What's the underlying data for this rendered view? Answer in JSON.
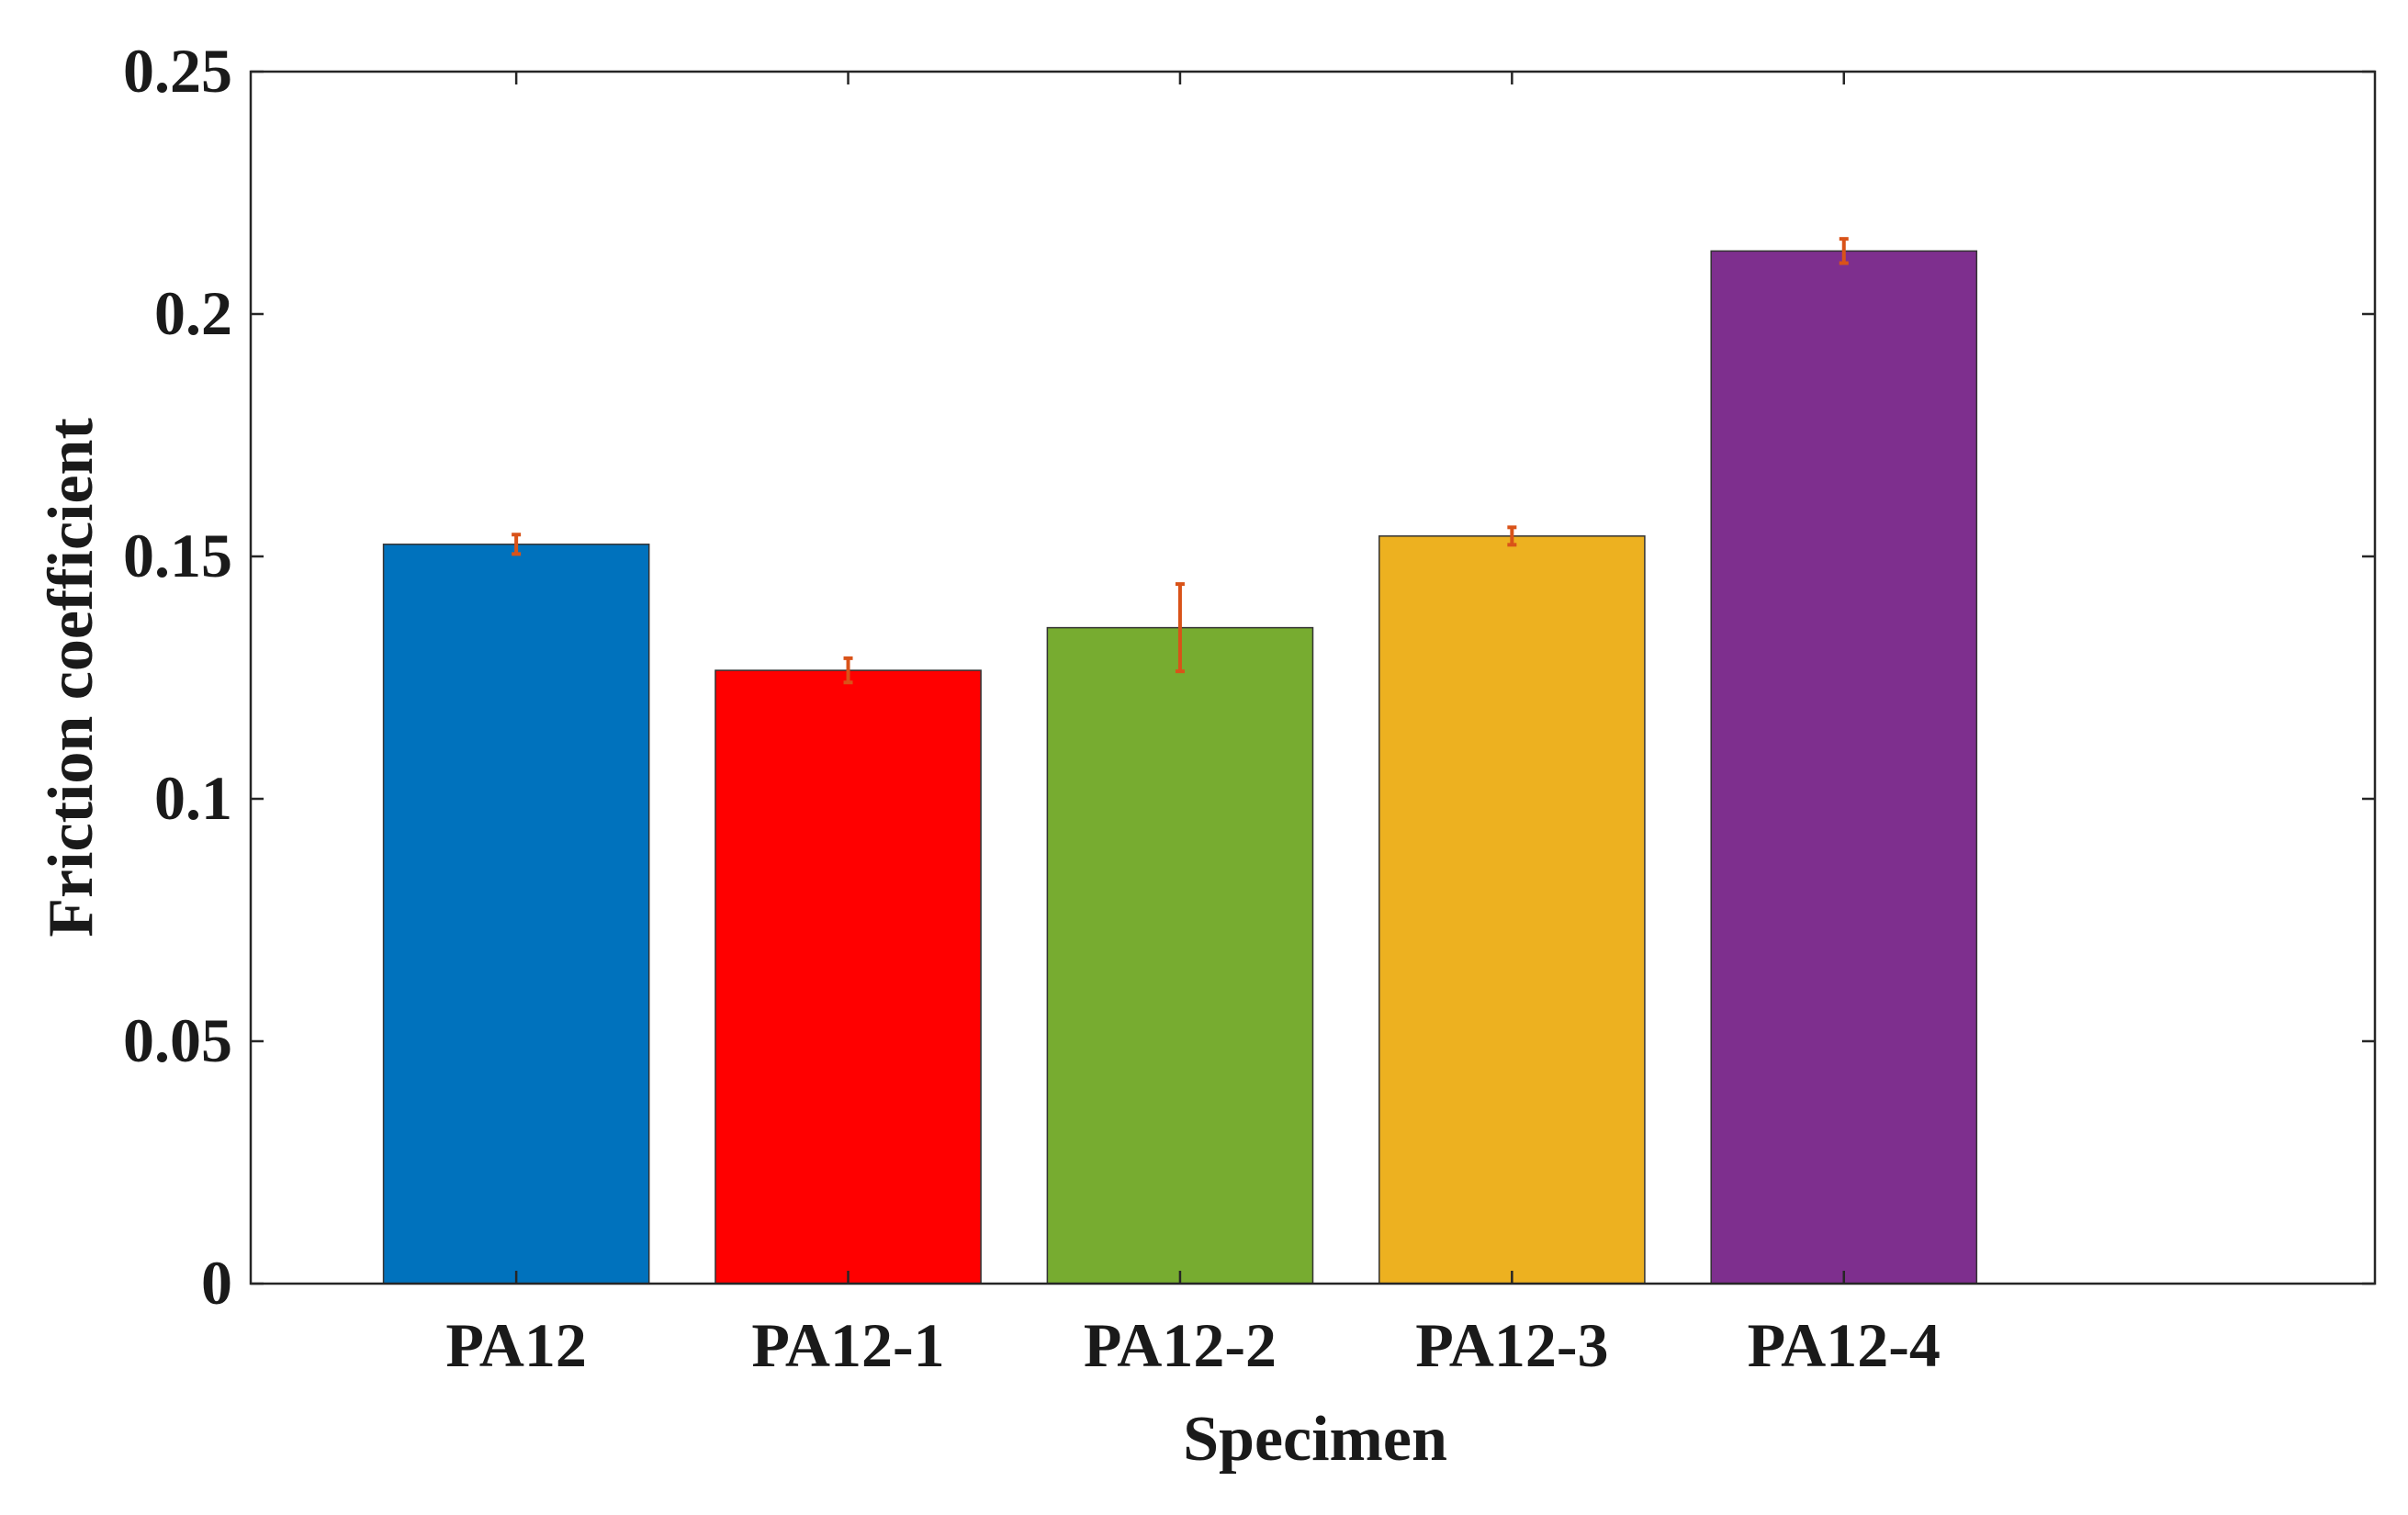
{
  "chart_data": {
    "type": "bar",
    "title": "",
    "xlabel": "Specimen",
    "ylabel": "Friction coefficient",
    "categories": [
      "PA12",
      "PA12-1",
      "PA12-2",
      "PA12-3",
      "PA12-4"
    ],
    "values": [
      0.1525,
      0.1265,
      0.1353,
      0.1542,
      0.213
    ],
    "errors": [
      0.002,
      0.0025,
      0.009,
      0.0018,
      0.0025
    ],
    "colors": [
      "#0072BD",
      "#FF0000",
      "#77AC30",
      "#EDB120",
      "#7E2F8E"
    ],
    "error_color": "#D95319",
    "ylim": [
      0,
      0.25
    ],
    "yticks": [
      0,
      0.05,
      0.1,
      0.15,
      0.2,
      0.25
    ],
    "ytick_labels": [
      "0",
      "0.05",
      "0.1",
      "0.15",
      "0.2",
      "0.25"
    ],
    "xlim": [
      0.2,
      6.6
    ],
    "grid": false,
    "legend": "none"
  }
}
